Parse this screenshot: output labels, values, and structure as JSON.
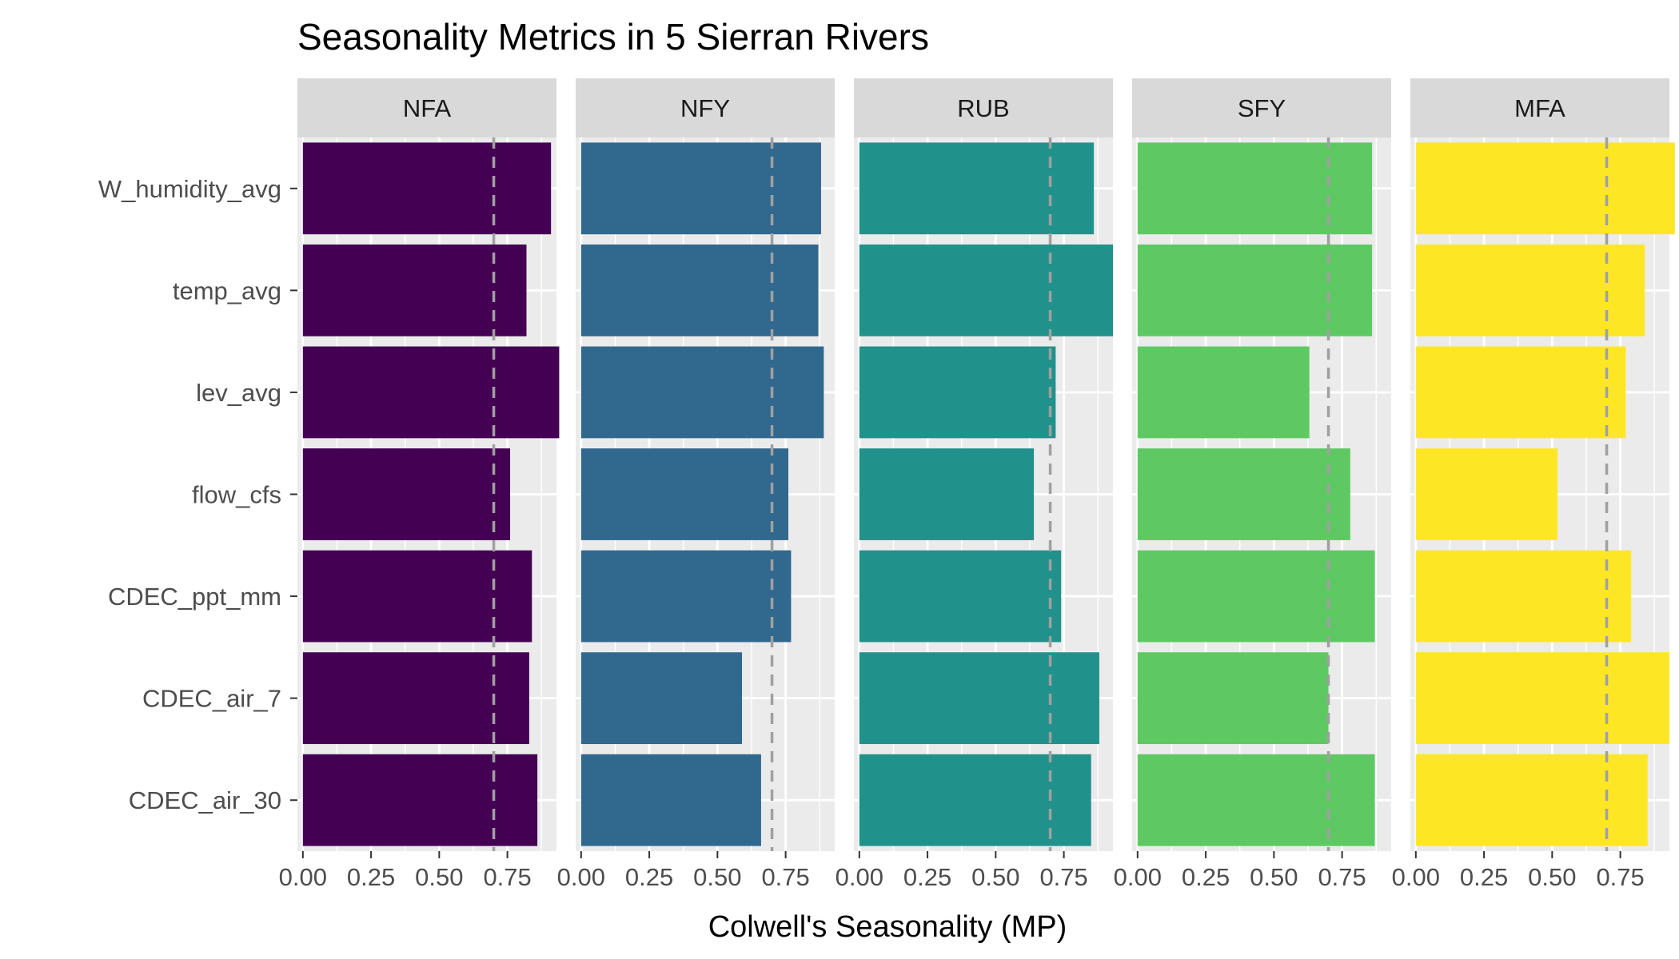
{
  "chart_data": {
    "type": "bar",
    "orientation": "horizontal",
    "title": "Seasonality Metrics in 5 Sierran Rivers",
    "xlabel": "Colwell's Seasonality (MP)",
    "ylabel": "",
    "xlim": [
      -0.02,
      0.93
    ],
    "x_ticks": [
      0,
      0.25,
      0.5,
      0.75
    ],
    "x_tick_labels": [
      "0.00",
      "0.25",
      "0.50",
      "0.75"
    ],
    "reference_line": {
      "x": 0.7,
      "style": "dashed",
      "color": "#a0a0a0"
    },
    "grid": true,
    "categories": [
      "W_humidity_avg",
      "temp_avg",
      "lev_avg",
      "flow_cfs",
      "CDEC_ppt_mm",
      "CDEC_air_7",
      "CDEC_air_30"
    ],
    "facets": [
      {
        "label": "NFA",
        "color": "#440154",
        "values": [
          0.91,
          0.82,
          0.94,
          0.76,
          0.84,
          0.83,
          0.86
        ]
      },
      {
        "label": "NFY",
        "color": "#31688e",
        "values": [
          0.88,
          0.87,
          0.89,
          0.76,
          0.77,
          0.59,
          0.66
        ]
      },
      {
        "label": "RUB",
        "color": "#21918c",
        "values": [
          0.86,
          0.93,
          0.72,
          0.64,
          0.74,
          0.88,
          0.85
        ]
      },
      {
        "label": "SFY",
        "color": "#5ec962",
        "values": [
          0.86,
          0.86,
          0.63,
          0.78,
          0.87,
          0.7,
          0.87
        ]
      },
      {
        "label": "MFA",
        "color": "#fde725",
        "values": [
          0.95,
          0.84,
          0.77,
          0.52,
          0.79,
          0.93,
          0.85
        ]
      }
    ]
  }
}
